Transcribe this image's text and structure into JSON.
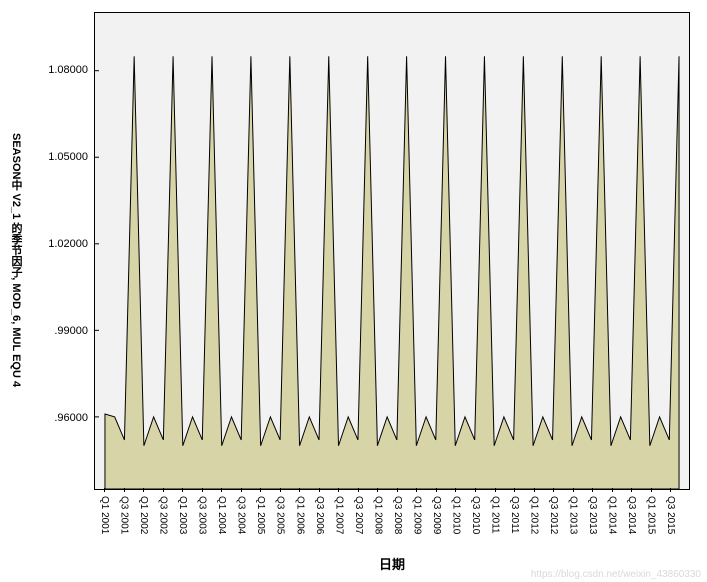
{
  "chart": {
    "type": "area",
    "y_label": "SEASON中 V2_1 的季节因子,  MOD_6,  MUL EQU 4",
    "x_label": "日期",
    "background_color": "#f2f2f2",
    "plot_border_color": "#000000",
    "area_fill": "#d7d4a8",
    "area_stroke": "#000000",
    "area_stroke_width": 1,
    "ylim": [
      0.935,
      1.1
    ],
    "y_ticks": [
      {
        "v": 0.96,
        "label": ".96000"
      },
      {
        "v": 0.99,
        "label": ".99000"
      },
      {
        "v": 1.02,
        "label": "1.02000"
      },
      {
        "v": 1.05,
        "label": "1.05000"
      },
      {
        "v": 1.08,
        "label": "1.08000"
      }
    ],
    "x_categories": [
      "Q1 2001",
      "Q3 2001",
      "Q1 2002",
      "Q3 2002",
      "Q1 2003",
      "Q3 2003",
      "Q1 2004",
      "Q3 2004",
      "Q1 2005",
      "Q3 2005",
      "Q1 2006",
      "Q3 2006",
      "Q1 2007",
      "Q3 2007",
      "Q1 2008",
      "Q3 2008",
      "Q1 2009",
      "Q3 2009",
      "Q1 2010",
      "Q3 2010",
      "Q1 2011",
      "Q3 2011",
      "Q1 2012",
      "Q3 2012",
      "Q1 2013",
      "Q3 2013",
      "Q1 2014",
      "Q3 2014",
      "Q1 2015",
      "Q3 2015"
    ],
    "series": [
      0.961,
      0.96,
      0.952,
      1.085,
      0.95,
      0.96,
      0.952,
      1.085,
      0.95,
      0.96,
      0.952,
      1.085,
      0.95,
      0.96,
      0.952,
      1.085,
      0.95,
      0.96,
      0.952,
      1.085,
      0.95,
      0.96,
      0.952,
      1.085,
      0.95,
      0.96,
      0.952,
      1.085,
      0.95,
      0.96,
      0.952,
      1.085,
      0.95,
      0.96,
      0.952,
      1.085,
      0.95,
      0.96,
      0.952,
      1.085,
      0.95,
      0.96,
      0.952,
      1.085,
      0.95,
      0.96,
      0.952,
      1.085,
      0.95,
      0.96,
      0.952,
      1.085,
      0.95,
      0.96,
      0.952,
      1.085,
      0.95,
      0.96,
      0.952,
      1.085
    ],
    "n_points": 60,
    "font_tick": 11,
    "font_xtick": 10,
    "font_label": 13
  },
  "watermark": "https://blog.csdn.net/weixin_43860330"
}
